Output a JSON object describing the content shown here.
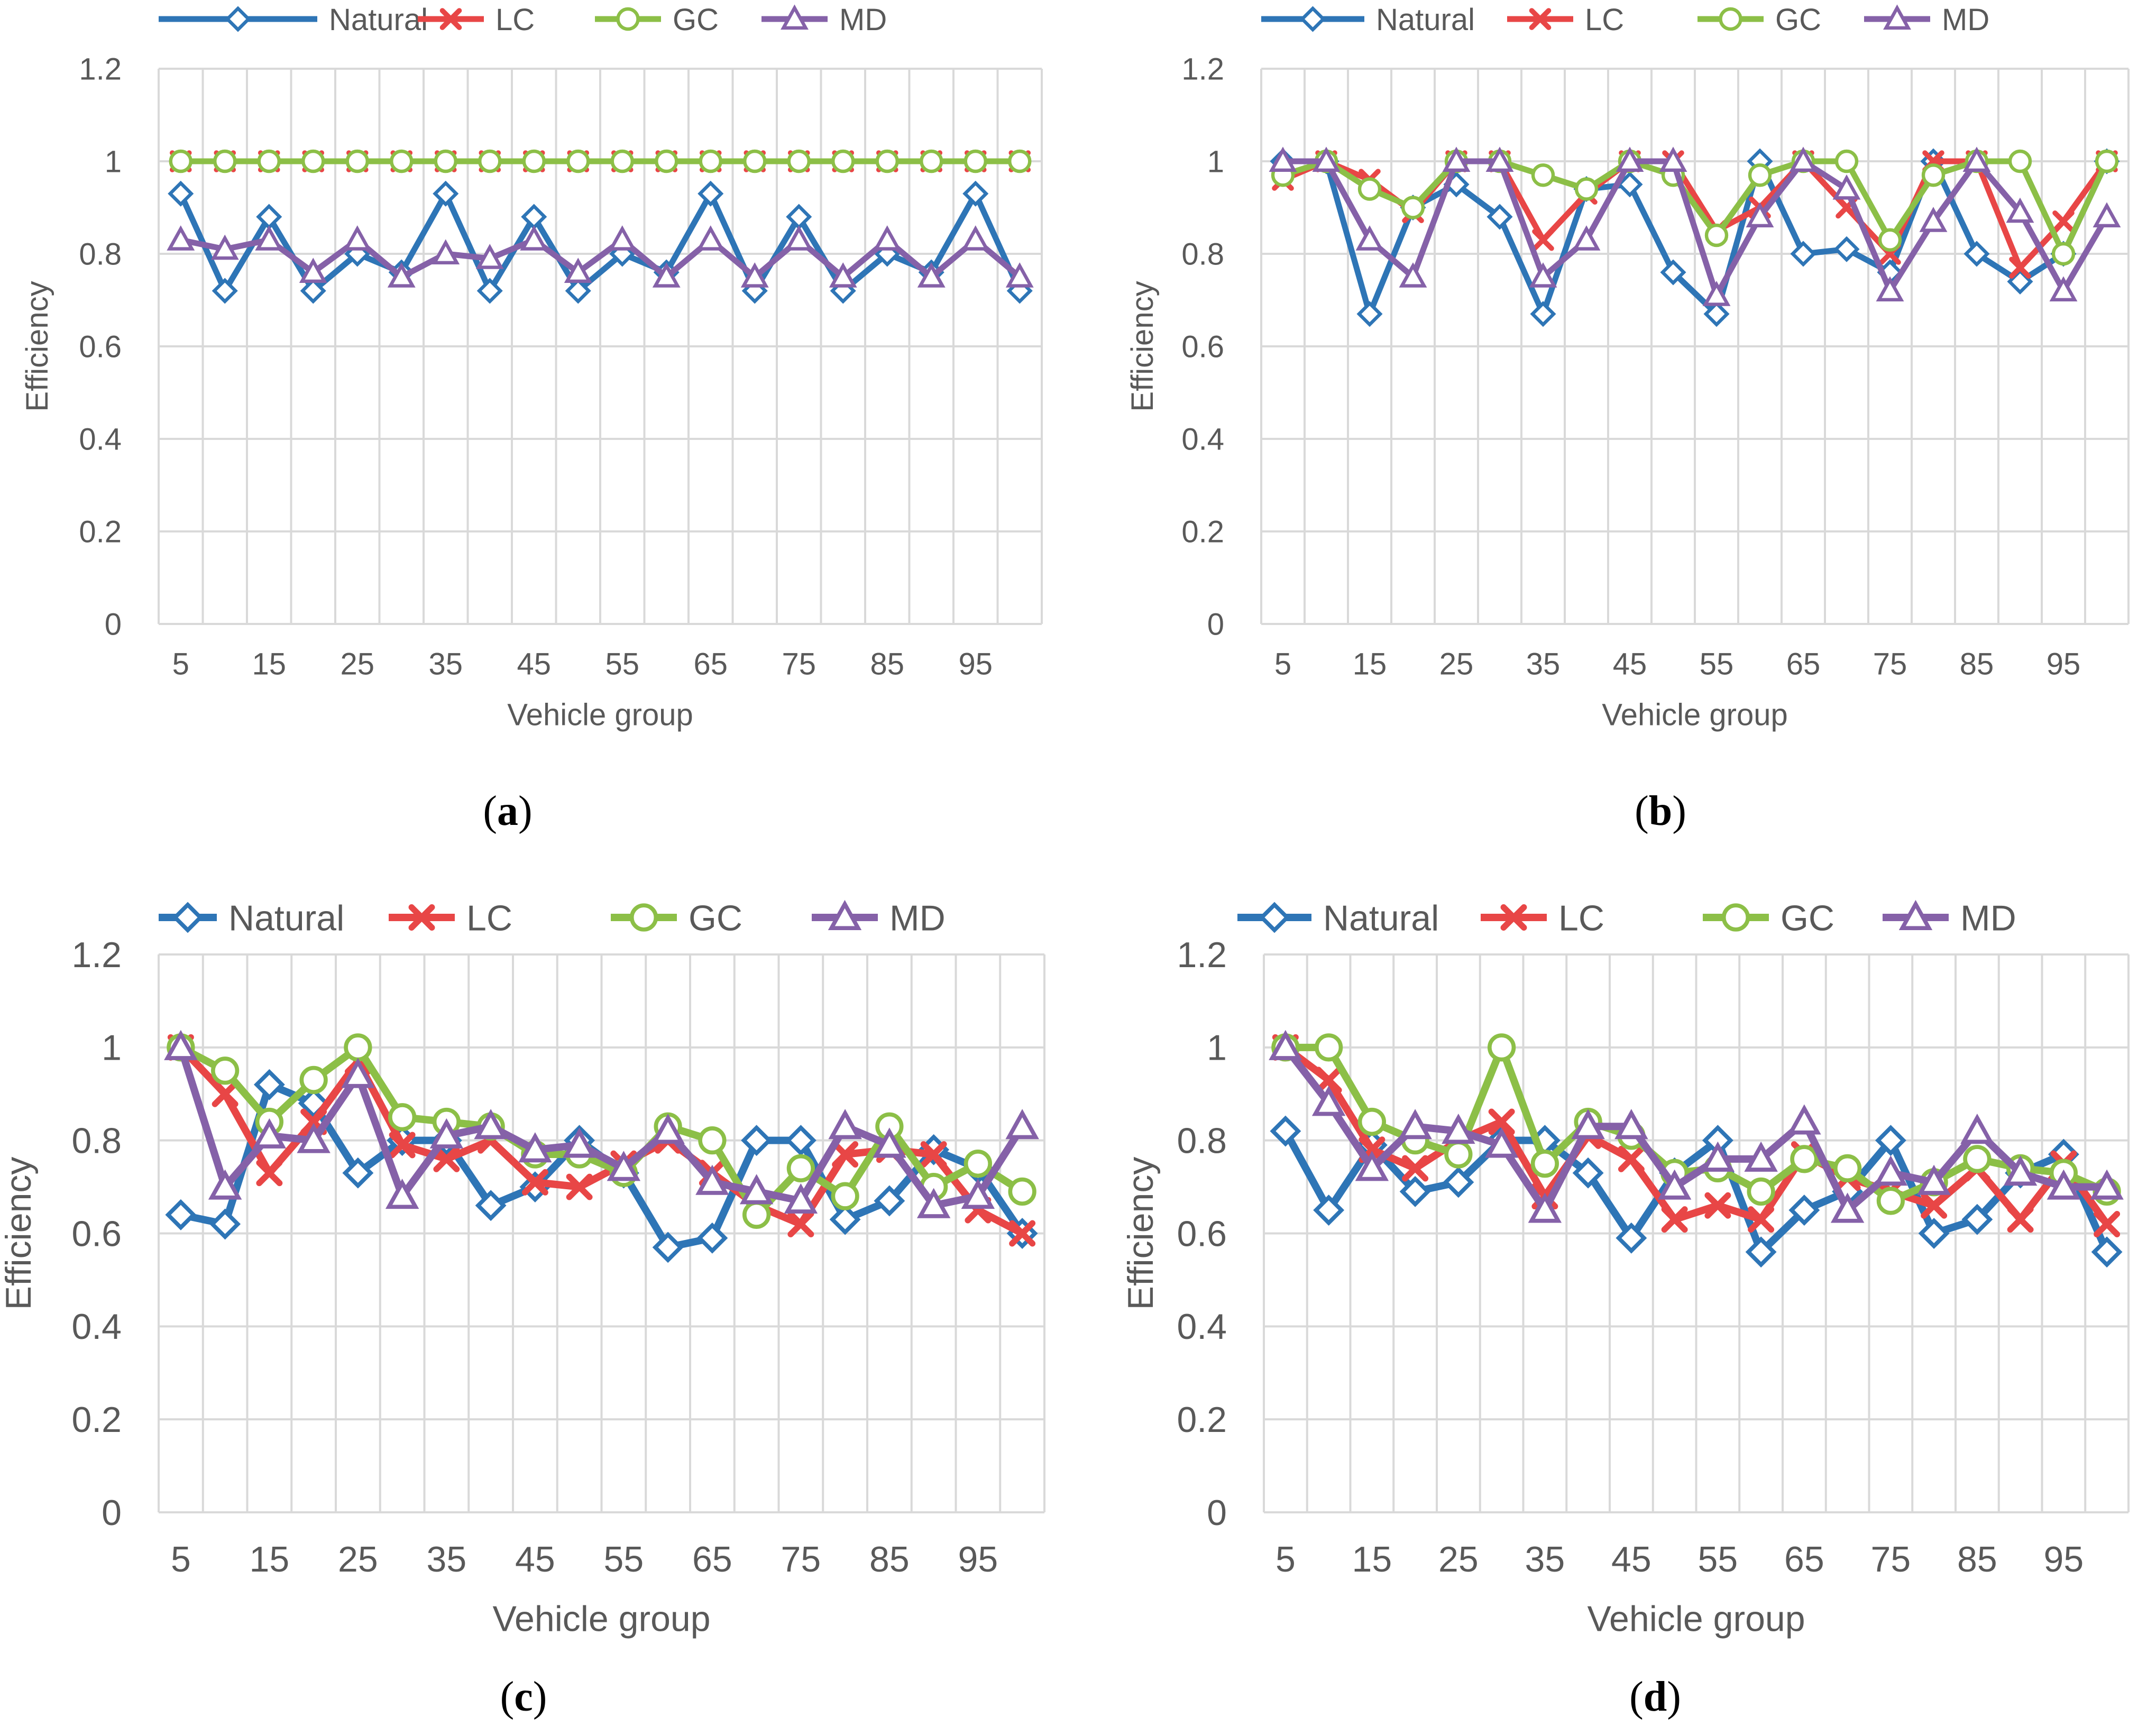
{
  "series_styles": [
    {
      "name": "Natural",
      "color": "#2e75b6",
      "marker": "diamond"
    },
    {
      "name": "LC",
      "color": "#e84646",
      "marker": "x"
    },
    {
      "name": "GC",
      "color": "#8cbf47",
      "marker": "circle"
    },
    {
      "name": "MD",
      "color": "#8561a8",
      "marker": "triangle"
    }
  ],
  "chart_data": [
    {
      "type": "line",
      "panel_label": "(a)",
      "xlabel": "Vehicle group",
      "ylabel": "Efficiency",
      "ylim": [
        0,
        1.2
      ],
      "yticks": [
        "0",
        "0.2",
        "0.4",
        "0.6",
        "0.8",
        "1",
        "1.2"
      ],
      "x": [
        5,
        10,
        15,
        20,
        25,
        30,
        35,
        40,
        45,
        50,
        55,
        60,
        65,
        70,
        75,
        80,
        85,
        90,
        95,
        100
      ],
      "xtick_labels": [
        "5",
        "15",
        "25",
        "35",
        "45",
        "55",
        "65",
        "75",
        "85",
        "95"
      ],
      "legend": "top",
      "series": [
        {
          "name": "Natural",
          "values": [
            0.93,
            0.72,
            0.88,
            0.72,
            0.8,
            0.76,
            0.93,
            0.72,
            0.88,
            0.72,
            0.8,
            0.76,
            0.93,
            0.72,
            0.88,
            0.72,
            0.8,
            0.76,
            0.93,
            0.72
          ]
        },
        {
          "name": "LC",
          "values": [
            1,
            1,
            1,
            1,
            1,
            1,
            1,
            1,
            1,
            1,
            1,
            1,
            1,
            1,
            1,
            1,
            1,
            1,
            1,
            1
          ]
        },
        {
          "name": "GC",
          "values": [
            1,
            1,
            1,
            1,
            1,
            1,
            1,
            1,
            1,
            1,
            1,
            1,
            1,
            1,
            1,
            1,
            1,
            1,
            1,
            1
          ]
        },
        {
          "name": "MD",
          "values": [
            0.83,
            0.81,
            0.83,
            0.76,
            0.83,
            0.75,
            0.8,
            0.79,
            0.83,
            0.76,
            0.83,
            0.75,
            0.83,
            0.75,
            0.83,
            0.75,
            0.83,
            0.75,
            0.83,
            0.75
          ]
        }
      ]
    },
    {
      "type": "line",
      "panel_label": "(b)",
      "xlabel": "Vehicle group",
      "ylabel": "Efficiency",
      "ylim": [
        0,
        1.2
      ],
      "yticks": [
        "0",
        "0.2",
        "0.4",
        "0.6",
        "0.8",
        "1",
        "1.2"
      ],
      "x": [
        5,
        10,
        15,
        20,
        25,
        30,
        35,
        40,
        45,
        50,
        55,
        60,
        65,
        70,
        75,
        80,
        85,
        90,
        95,
        100
      ],
      "xtick_labels": [
        "5",
        "15",
        "25",
        "35",
        "45",
        "55",
        "65",
        "75",
        "85",
        "95"
      ],
      "legend": "top",
      "series": [
        {
          "name": "Natural",
          "values": [
            1,
            1,
            0.67,
            0.9,
            0.95,
            0.88,
            0.67,
            0.94,
            0.95,
            0.76,
            0.67,
            1,
            0.8,
            0.81,
            0.76,
            1,
            0.8,
            0.74,
            0.8,
            1
          ]
        },
        {
          "name": "LC",
          "values": [
            0.96,
            1,
            0.96,
            0.89,
            1,
            1,
            0.83,
            0.93,
            1,
            1,
            0.85,
            0.9,
            1,
            0.9,
            0.8,
            1,
            1,
            0.77,
            0.87,
            1
          ]
        },
        {
          "name": "GC",
          "values": [
            0.97,
            1,
            0.94,
            0.9,
            1,
            1,
            0.97,
            0.94,
            1,
            0.97,
            0.84,
            0.97,
            1,
            1,
            0.83,
            0.97,
            1,
            1,
            0.8,
            1
          ]
        },
        {
          "name": "MD",
          "values": [
            1,
            1,
            0.83,
            0.75,
            1,
            1,
            0.75,
            0.83,
            1,
            1,
            0.71,
            0.88,
            1,
            0.94,
            0.72,
            0.87,
            1,
            0.89,
            0.72,
            0.88
          ]
        }
      ]
    },
    {
      "type": "line",
      "panel_label": "(c)",
      "xlabel": "Vehicle group",
      "ylabel": "Efficiency",
      "ylim": [
        0,
        1.2
      ],
      "yticks": [
        "0",
        "0.2",
        "0.4",
        "0.6",
        "0.8",
        "1",
        "1.2"
      ],
      "x": [
        5,
        10,
        15,
        20,
        25,
        30,
        35,
        40,
        45,
        50,
        55,
        60,
        65,
        70,
        75,
        80,
        85,
        90,
        95,
        100
      ],
      "xtick_labels": [
        "5",
        "15",
        "25",
        "35",
        "45",
        "55",
        "65",
        "75",
        "85",
        "95"
      ],
      "legend": "top",
      "series": [
        {
          "name": "Natural",
          "values": [
            0.64,
            0.62,
            0.92,
            0.88,
            0.73,
            0.8,
            0.8,
            0.66,
            0.7,
            0.8,
            0.73,
            0.57,
            0.59,
            0.8,
            0.8,
            0.63,
            0.67,
            0.78,
            0.74,
            0.6
          ]
        },
        {
          "name": "LC",
          "values": [
            1,
            0.9,
            0.73,
            0.84,
            0.97,
            0.79,
            0.76,
            0.8,
            0.71,
            0.7,
            0.75,
            0.8,
            0.73,
            0.66,
            0.62,
            0.77,
            0.78,
            0.77,
            0.65,
            0.6
          ]
        },
        {
          "name": "GC",
          "values": [
            1,
            0.95,
            0.84,
            0.93,
            1,
            0.85,
            0.84,
            0.83,
            0.77,
            0.77,
            0.73,
            0.83,
            0.8,
            0.64,
            0.74,
            0.68,
            0.83,
            0.7,
            0.75,
            0.69
          ]
        },
        {
          "name": "MD",
          "values": [
            1,
            0.7,
            0.81,
            0.8,
            0.94,
            0.68,
            0.81,
            0.83,
            0.78,
            0.79,
            0.74,
            0.82,
            0.71,
            0.69,
            0.67,
            0.83,
            0.79,
            0.66,
            0.68,
            0.83
          ]
        }
      ]
    },
    {
      "type": "line",
      "panel_label": "(d)",
      "xlabel": "Vehicle group",
      "ylabel": "Efficiency",
      "ylim": [
        0,
        1.2
      ],
      "yticks": [
        "0",
        "0.2",
        "0.4",
        "0.6",
        "0.8",
        "1",
        "1.2"
      ],
      "x": [
        5,
        10,
        15,
        20,
        25,
        30,
        35,
        40,
        45,
        50,
        55,
        60,
        65,
        70,
        75,
        80,
        85,
        90,
        95,
        100
      ],
      "xtick_labels": [
        "5",
        "15",
        "25",
        "35",
        "45",
        "55",
        "65",
        "75",
        "85",
        "95"
      ],
      "legend": "top",
      "series": [
        {
          "name": "Natural",
          "values": [
            0.82,
            0.65,
            0.79,
            0.69,
            0.71,
            0.8,
            0.8,
            0.73,
            0.59,
            0.73,
            0.8,
            0.56,
            0.65,
            0.69,
            0.8,
            0.6,
            0.63,
            0.73,
            0.77,
            0.56
          ]
        },
        {
          "name": "LC",
          "values": [
            1,
            0.93,
            0.78,
            0.74,
            0.8,
            0.84,
            0.68,
            0.81,
            0.76,
            0.63,
            0.66,
            0.63,
            0.77,
            0.72,
            0.69,
            0.66,
            0.74,
            0.63,
            0.75,
            0.62
          ]
        },
        {
          "name": "GC",
          "values": [
            1,
            1,
            0.84,
            0.8,
            0.77,
            1,
            0.75,
            0.84,
            0.81,
            0.73,
            0.74,
            0.69,
            0.76,
            0.74,
            0.67,
            0.71,
            0.76,
            0.74,
            0.73,
            0.69
          ]
        },
        {
          "name": "MD",
          "values": [
            1,
            0.88,
            0.74,
            0.83,
            0.82,
            0.79,
            0.65,
            0.83,
            0.83,
            0.7,
            0.76,
            0.76,
            0.84,
            0.65,
            0.73,
            0.71,
            0.82,
            0.73,
            0.7,
            0.7
          ]
        }
      ]
    }
  ]
}
